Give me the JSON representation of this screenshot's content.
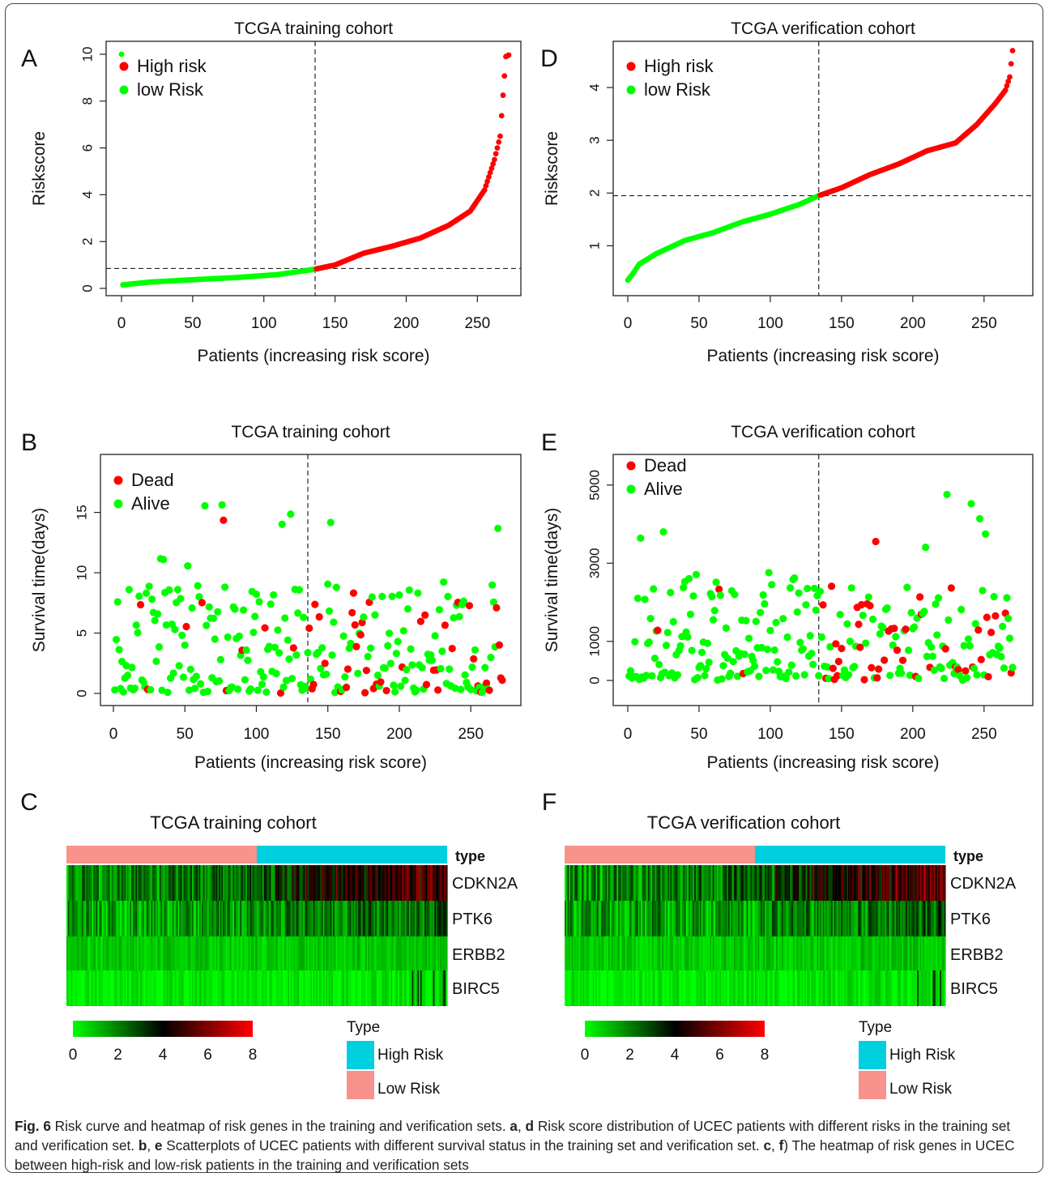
{
  "chart_data": [
    {
      "panel": "A",
      "type": "scatter",
      "title": "TCGA training cohort",
      "xlabel": "Patients (increasing risk score)",
      "ylabel": "Riskscore",
      "xlim": [
        0,
        272
      ],
      "ylim": [
        0,
        10
      ],
      "xticks": [
        "0",
        "50",
        "100",
        "150",
        "200",
        "250"
      ],
      "yticks": [
        "0",
        "2",
        "4",
        "6",
        "8",
        "10"
      ],
      "cutoff_x": 136,
      "cutoff_y": 0.85,
      "legend": [
        "High risk",
        "low Risk"
      ],
      "legend_position": "top-left",
      "curve_points": [
        [
          1,
          0.15
        ],
        [
          20,
          0.27
        ],
        [
          50,
          0.37
        ],
        [
          80,
          0.46
        ],
        [
          110,
          0.59
        ],
        [
          136,
          0.82
        ],
        [
          150,
          1.0
        ],
        [
          170,
          1.5
        ],
        [
          190,
          1.8
        ],
        [
          210,
          2.15
        ],
        [
          230,
          2.7
        ],
        [
          245,
          3.3
        ],
        [
          255,
          4.2
        ],
        [
          262,
          5.5
        ],
        [
          266,
          6.5
        ],
        [
          268,
          8.25
        ],
        [
          270,
          9.9
        ],
        [
          273,
          10.0
        ]
      ]
    },
    {
      "panel": "D",
      "type": "scatter",
      "title": "TCGA verification cohort",
      "xlabel": "Patients (increasing risk score)",
      "ylabel": "Riskscore",
      "xlim": [
        0,
        270
      ],
      "ylim": [
        0.3,
        4.6
      ],
      "xticks": [
        "0",
        "50",
        "100",
        "150",
        "200",
        "250"
      ],
      "yticks": [
        "1",
        "2",
        "3",
        "4"
      ],
      "cutoff_x": 134,
      "cutoff_y": 1.95,
      "legend": [
        "High risk",
        "low Risk"
      ],
      "legend_position": "top-left",
      "curve_points": [
        [
          0,
          0.35
        ],
        [
          3,
          0.45
        ],
        [
          8,
          0.65
        ],
        [
          20,
          0.85
        ],
        [
          40,
          1.1
        ],
        [
          60,
          1.25
        ],
        [
          80,
          1.45
        ],
        [
          100,
          1.6
        ],
        [
          120,
          1.78
        ],
        [
          134,
          1.95
        ],
        [
          150,
          2.1
        ],
        [
          170,
          2.35
        ],
        [
          190,
          2.55
        ],
        [
          210,
          2.8
        ],
        [
          230,
          2.95
        ],
        [
          245,
          3.3
        ],
        [
          258,
          3.7
        ],
        [
          265,
          3.95
        ],
        [
          268,
          4.2
        ],
        [
          270,
          4.7
        ]
      ]
    },
    {
      "panel": "B",
      "type": "scatter",
      "title": "TCGA training cohort",
      "xlabel": "Patients (increasing risk score)",
      "ylabel": "Survival time(days)",
      "xlim": [
        0,
        272
      ],
      "ylim": [
        0,
        19
      ],
      "xticks": [
        "0",
        "50",
        "100",
        "150",
        "200",
        "250"
      ],
      "yticks": [
        "0",
        "5",
        "10",
        "15"
      ],
      "cutoff_x": 136,
      "legend": [
        "Dead",
        "Alive"
      ],
      "legend_position": "top-left"
    },
    {
      "panel": "E",
      "type": "scatter",
      "title": "TCGA verification cohort",
      "xlabel": "Patients (increasing risk score)",
      "ylabel": "Survival time(days)",
      "xlim": [
        0,
        270
      ],
      "ylim": [
        0,
        5700
      ],
      "xticks": [
        "0",
        "50",
        "100",
        "150",
        "200",
        "250"
      ],
      "yticks": [
        "0",
        "1000",
        "3000",
        "5000"
      ],
      "cutoff_x": 134,
      "legend": [
        "Dead",
        "Alive"
      ],
      "legend_position": "top-left"
    },
    {
      "panel": "C",
      "type": "heatmap",
      "title": "TCGA training cohort",
      "rows": [
        "CDKN2A",
        "PTK6",
        "ERBB2",
        "BIRC5"
      ],
      "annotation_label": "type",
      "low_risk_fraction": 0.5,
      "color_scale_ticks": [
        "0",
        "2",
        "4",
        "6",
        "8"
      ],
      "colors": [
        "#00ff00",
        "#000000",
        "#ff0000"
      ]
    },
    {
      "panel": "F",
      "type": "heatmap",
      "title": "TCGA verification cohort",
      "rows": [
        "CDKN2A",
        "PTK6",
        "ERBB2",
        "BIRC5"
      ],
      "annotation_label": "type",
      "low_risk_fraction": 0.5,
      "color_scale_ticks": [
        "0",
        "2",
        "4",
        "6",
        "8"
      ],
      "colors": [
        "#00ff00",
        "#000000",
        "#ff0000"
      ]
    }
  ],
  "colors": {
    "high": "#ff0000",
    "low": "#00ff00",
    "high_risk_type": "#00cfe0",
    "low_risk_type": "#f7938b"
  },
  "type_legend": {
    "title": "Type",
    "high": "High Risk",
    "low": "Low Risk"
  },
  "caption": {
    "fig": "Fig. 6",
    "text1": " Risk curve and heatmap of risk genes in the training and verification sets. ",
    "a": "a",
    "sep1": ", ",
    "d": "d",
    "text2": " Risk score distribution of UCEC patients with different risks in the training set and verification set. ",
    "b": "b",
    "sep2": ", ",
    "e": "e",
    "text3": " Scatterplots of UCEC patients with different survival status in the training set and verification set. ",
    "c": "c",
    "sep3": ", ",
    "f": "f",
    "text4": ") The heatmap of risk genes in UCEC between high-risk and low-risk patients in the training and verification sets"
  }
}
